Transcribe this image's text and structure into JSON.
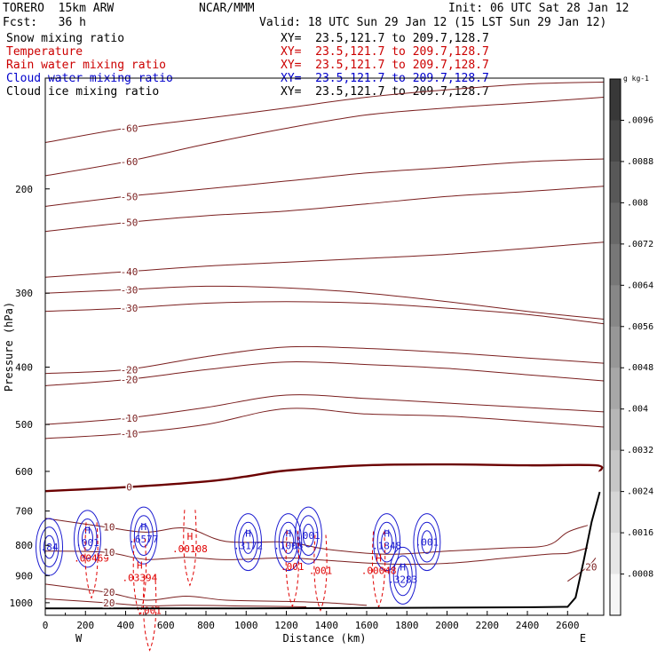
{
  "header": {
    "model": "TORERO  15km ARW",
    "center": "NCAR/MMM",
    "init": "Init: 06 UTC Sat 28 Jan 12",
    "fcst": "Fcst:   36 h",
    "valid": "Valid: 18 UTC Sun 29 Jan 12 (15 LST Sun 29 Jan 12)"
  },
  "fields": [
    {
      "label": "Snow mixing ratio",
      "xy": "XY=  23.5,121.7 to 209.7,128.7",
      "label_color": "#000000",
      "xy_color": "#000000"
    },
    {
      "label": "Temperature",
      "xy": "XY=  23.5,121.7 to 209.7,128.7",
      "label_color": "#cc0000",
      "xy_color": "#cc0000"
    },
    {
      "label": "Rain water mixing ratio",
      "xy": "XY=  23.5,121.7 to 209.7,128.7",
      "label_color": "#cc0000",
      "xy_color": "#cc0000"
    },
    {
      "label": "Cloud water mixing ratio",
      "xy": "XY=  23.5,121.7 to 209.7,128.7",
      "label_color": "#0000cc",
      "xy_color": "#0000cc"
    },
    {
      "label": "Cloud ice mixing ratio",
      "xy": "XY=  23.5,121.7 to 209.7,128.7",
      "label_color": "#000000",
      "xy_color": "#000000"
    }
  ],
  "colors": {
    "temperature": "#7a1e1e",
    "freezing": "#6b0000",
    "cloud_water": "#1a1ad0",
    "rain": "#e00000",
    "terrain": "#000000"
  },
  "chart_data": {
    "type": "cross-section",
    "xlabel": "Distance (km)",
    "ylabel": "Pressure (hPa)",
    "xlim": [
      0,
      2780
    ],
    "ylim": [
      1050,
      130
    ],
    "y_log": true,
    "x_ticks": [
      0,
      200,
      400,
      600,
      800,
      1000,
      1200,
      1400,
      1600,
      1800,
      2000,
      2200,
      2400,
      2600
    ],
    "y_ticks": [
      200,
      300,
      400,
      500,
      600,
      700,
      800,
      900,
      1000
    ],
    "endpoints": {
      "left": "W",
      "right": "E"
    },
    "temperature_contours": [
      {
        "level": -60,
        "points": [
          [
            0,
            190
          ],
          [
            400,
            180
          ],
          [
            800,
            168
          ],
          [
            1200,
            158
          ],
          [
            1600,
            150
          ],
          [
            2000,
            146
          ],
          [
            2400,
            143
          ],
          [
            2780,
            140
          ]
        ]
      },
      {
        "level": -60,
        "points": [
          [
            0,
            167
          ],
          [
            400,
            158
          ],
          [
            800,
            152
          ],
          [
            1200,
            146
          ],
          [
            1600,
            140
          ],
          [
            2000,
            136
          ],
          [
            2400,
            133
          ],
          [
            2780,
            132
          ]
        ]
      },
      {
        "level": -50,
        "points": [
          [
            0,
            236
          ],
          [
            400,
            228
          ],
          [
            800,
            222
          ],
          [
            1200,
            218
          ],
          [
            1600,
            212
          ],
          [
            2000,
            206
          ],
          [
            2400,
            202
          ],
          [
            2780,
            198
          ]
        ]
      },
      {
        "level": -50,
        "points": [
          [
            0,
            214
          ],
          [
            400,
            206
          ],
          [
            800,
            200
          ],
          [
            1200,
            194
          ],
          [
            1600,
            188
          ],
          [
            2000,
            184
          ],
          [
            2400,
            180
          ],
          [
            2780,
            178
          ]
        ]
      },
      {
        "level": -40,
        "points": [
          [
            0,
            282
          ],
          [
            400,
            276
          ],
          [
            800,
            270
          ],
          [
            1200,
            266
          ],
          [
            1600,
            262
          ],
          [
            2000,
            258
          ],
          [
            2400,
            252
          ],
          [
            2780,
            246
          ]
        ]
      },
      {
        "level": -30,
        "points": [
          [
            0,
            300
          ],
          [
            400,
            296
          ],
          [
            800,
            292
          ],
          [
            1200,
            294
          ],
          [
            1600,
            300
          ],
          [
            2000,
            310
          ],
          [
            2400,
            322
          ],
          [
            2780,
            332
          ]
        ]
      },
      {
        "level": -30,
        "points": [
          [
            0,
            322
          ],
          [
            400,
            318
          ],
          [
            800,
            312
          ],
          [
            1200,
            310
          ],
          [
            1600,
            312
          ],
          [
            2000,
            318
          ],
          [
            2400,
            326
          ],
          [
            2780,
            338
          ]
        ]
      },
      {
        "level": -20,
        "points": [
          [
            0,
            410
          ],
          [
            400,
            404
          ],
          [
            800,
            384
          ],
          [
            1200,
            370
          ],
          [
            1600,
            372
          ],
          [
            2000,
            378
          ],
          [
            2400,
            386
          ],
          [
            2780,
            394
          ]
        ]
      },
      {
        "level": -20,
        "points": [
          [
            0,
            430
          ],
          [
            400,
            420
          ],
          [
            800,
            404
          ],
          [
            1200,
            392
          ],
          [
            1600,
            396
          ],
          [
            2000,
            402
          ],
          [
            2400,
            412
          ],
          [
            2780,
            422
          ]
        ]
      },
      {
        "level": -10,
        "points": [
          [
            0,
            500
          ],
          [
            400,
            488
          ],
          [
            800,
            468
          ],
          [
            1200,
            446
          ],
          [
            1600,
            452
          ],
          [
            2000,
            460
          ],
          [
            2400,
            468
          ],
          [
            2780,
            476
          ]
        ]
      },
      {
        "level": -10,
        "points": [
          [
            0,
            528
          ],
          [
            400,
            518
          ],
          [
            800,
            500
          ],
          [
            1200,
            470
          ],
          [
            1600,
            480
          ],
          [
            2000,
            484
          ],
          [
            2400,
            494
          ],
          [
            2780,
            505
          ]
        ]
      },
      {
        "level": 0,
        "points": [
          [
            0,
            648
          ],
          [
            400,
            638
          ],
          [
            800,
            624
          ],
          [
            1000,
            612
          ],
          [
            1200,
            598
          ],
          [
            1600,
            586
          ],
          [
            2000,
            584
          ],
          [
            2400,
            586
          ],
          [
            2740,
            586
          ],
          [
            2760,
            600
          ]
        ]
      },
      {
        "level": 10,
        "points": [
          [
            0,
            720
          ],
          [
            300,
            745
          ],
          [
            500,
            760
          ],
          [
            700,
            748
          ],
          [
            900,
            788
          ],
          [
            1200,
            790
          ],
          [
            1400,
            812
          ],
          [
            1700,
            828
          ],
          [
            2000,
            818
          ],
          [
            2300,
            808
          ],
          [
            2500,
            800
          ],
          [
            2600,
            760
          ],
          [
            2700,
            740
          ]
        ]
      },
      {
        "level": 10,
        "points": [
          [
            0,
            818
          ],
          [
            300,
            822
          ],
          [
            500,
            845
          ],
          [
            700,
            838
          ],
          [
            900,
            846
          ],
          [
            1200,
            840
          ],
          [
            1400,
            848
          ],
          [
            1700,
            860
          ],
          [
            2000,
            858
          ],
          [
            2300,
            840
          ],
          [
            2500,
            828
          ],
          [
            2600,
            825
          ],
          [
            2700,
            808
          ]
        ]
      },
      {
        "level": 20,
        "points": [
          [
            0,
            930
          ],
          [
            300,
            960
          ],
          [
            500,
            990
          ],
          [
            700,
            975
          ],
          [
            900,
            990
          ],
          [
            1200,
            995
          ],
          [
            1400,
            1000
          ],
          [
            1600,
            1010
          ]
        ]
      },
      {
        "level": 20,
        "points": [
          [
            0,
            985
          ],
          [
            300,
            1000
          ],
          [
            500,
            1012
          ],
          [
            700,
            1010
          ],
          [
            1000,
            1013
          ],
          [
            1300,
            1016
          ]
        ]
      },
      {
        "level": 20,
        "points": [
          [
            2600,
            920
          ],
          [
            2700,
            870
          ],
          [
            2740,
            840
          ]
        ]
      }
    ],
    "cloud_water_centers": [
      {
        "x": 20,
        "p": 805,
        "label": ".84"
      },
      {
        "x": 210,
        "p": 780,
        "label": "H",
        "value": ".001"
      },
      {
        "x": 490,
        "p": 770,
        "label": "H",
        "value": ".6577"
      },
      {
        "x": 1010,
        "p": 790,
        "label": "H",
        "value": ".3172"
      },
      {
        "x": 1210,
        "p": 790,
        "label": "H",
        "value": ".1008"
      },
      {
        "x": 1310,
        "p": 770,
        "label": ".001"
      },
      {
        "x": 1700,
        "p": 790,
        "label": "H",
        "value": ".1848"
      },
      {
        "x": 1900,
        "p": 790,
        "label": ".001"
      },
      {
        "x": 1780,
        "p": 900,
        "label": "H",
        "value": ".3283"
      }
    ],
    "rain_centers": [
      {
        "x": 230,
        "p": 840,
        "label": ".00469"
      },
      {
        "x": 470,
        "p": 895,
        "label": "H",
        "value": ".03394"
      },
      {
        "x": 720,
        "p": 800,
        "label": "H",
        "value": ".00108"
      },
      {
        "x": 1230,
        "p": 868,
        "label": ".001"
      },
      {
        "x": 1370,
        "p": 882,
        "label": ".001"
      },
      {
        "x": 1660,
        "p": 870,
        "label": "H",
        "value": ".00048"
      },
      {
        "x": 520,
        "p": 1030,
        "label": ".001"
      }
    ],
    "colorbar": {
      "unit": "g kg-1",
      "ticks": [
        ".0096",
        ".0088",
        ".008",
        ".0072",
        ".0064",
        ".0056",
        ".0048",
        ".004",
        ".0032",
        ".0024",
        ".0016",
        ".0008"
      ]
    }
  }
}
